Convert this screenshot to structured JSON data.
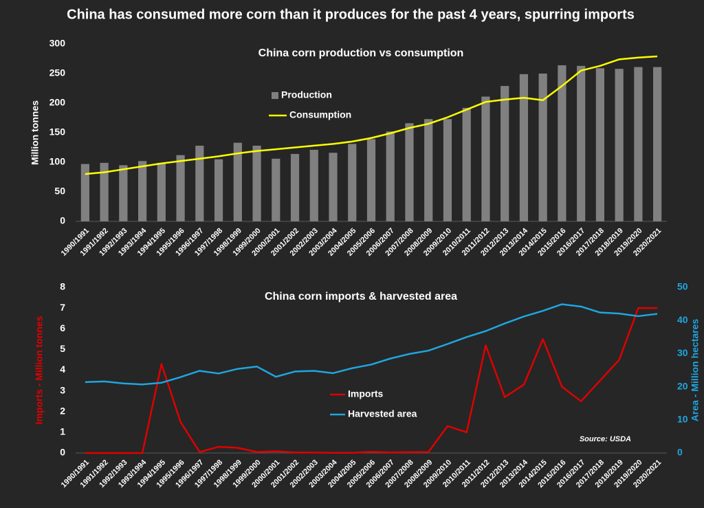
{
  "title": "China has consumed more corn than it produces for the past 4 years, spurring imports",
  "chart_data": [
    {
      "type": "combo",
      "title": "China corn production vs consumption",
      "ylabel": "Million tonnes",
      "categories": [
        "1990/1991",
        "1991/1992",
        "1992/1993",
        "1993/1994",
        "1994/1995",
        "1995/1996",
        "1996/1997",
        "1997/1998",
        "1998/1999",
        "1999/2000",
        "2000/2001",
        "2001/2002",
        "2002/2003",
        "2003/2004",
        "2004/2005",
        "2005/2006",
        "2006/2007",
        "2007/2008",
        "2008/2009",
        "2009/2010",
        "2010/2011",
        "2011/2012",
        "2012/2013",
        "2013/2014",
        "2014/2015",
        "2015/2016",
        "2016/2017",
        "2017/2018",
        "2018/2019",
        "2019/2020",
        "2020/2021"
      ],
      "series": [
        {
          "name": "Production",
          "type": "bar",
          "color": "#808080",
          "values": [
            97,
            99,
            95,
            102,
            99,
            112,
            128,
            105,
            133,
            128,
            106,
            114,
            121,
            116,
            131,
            139,
            152,
            166,
            173,
            173,
            192,
            211,
            229,
            249,
            250,
            264,
            263,
            259,
            258,
            261,
            261
          ]
        },
        {
          "name": "Consumption",
          "type": "line",
          "color": "#ffff00",
          "values": [
            80,
            83,
            88,
            93,
            98,
            102,
            106,
            110,
            115,
            119,
            122,
            125,
            128,
            131,
            135,
            141,
            149,
            158,
            165,
            176,
            189,
            202,
            206,
            209,
            205,
            229,
            255,
            263,
            274,
            277,
            279
          ]
        }
      ],
      "ylim": [
        0,
        300
      ],
      "yticks": [
        0,
        50,
        100,
        150,
        200,
        250,
        300
      ]
    },
    {
      "type": "line",
      "title": "China corn imports & harvested area",
      "ylabel": "Imports - Million tonnes",
      "y2label": "Area - Million hectares",
      "annotation": "Source: USDA",
      "categories": [
        "1990/1991",
        "1991/1992",
        "1992/1993",
        "1993/1994",
        "1994/1995",
        "1995/1996",
        "1996/1997",
        "1997/1998",
        "1998/1999",
        "1999/2000",
        "2000/2001",
        "2001/2002",
        "2002/2003",
        "2003/2004",
        "2004/2005",
        "2005/2006",
        "2006/2007",
        "2007/2008",
        "2008/2009",
        "2009/2010",
        "2010/2011",
        "2011/2012",
        "2012/2013",
        "2013/2014",
        "2014/2015",
        "2015/2016",
        "2016/2017",
        "2017/2018",
        "2018/2019",
        "2019/2020",
        "2020/2021"
      ],
      "series": [
        {
          "name": "Imports",
          "color": "#e00000",
          "values": [
            0,
            0,
            0,
            0,
            4.3,
            1.5,
            0.05,
            0.3,
            0.25,
            0.05,
            0.08,
            0.03,
            0.02,
            0.01,
            0.01,
            0.06,
            0.03,
            0.04,
            0.05,
            1.3,
            1.0,
            5.2,
            2.7,
            3.3,
            5.5,
            3.2,
            2.5,
            3.5,
            4.5,
            7.0,
            7.0
          ]
        },
        {
          "name": "Harvested area",
          "color": "#1fa6e0",
          "axis": "y2",
          "values": [
            21.4,
            21.6,
            21.0,
            20.7,
            21.2,
            22.9,
            24.8,
            24.0,
            25.4,
            26.1,
            23.0,
            24.6,
            24.8,
            24.1,
            25.6,
            26.7,
            28.5,
            29.9,
            30.9,
            32.9,
            35.0,
            36.8,
            39.1,
            41.2,
            42.9,
            44.9,
            44.2,
            42.4,
            42.1,
            41.3,
            42.0
          ]
        }
      ],
      "ylim": [
        0,
        8
      ],
      "yticks": [
        0,
        1,
        2,
        3,
        4,
        5,
        6,
        7,
        8
      ],
      "y2lim": [
        0,
        50
      ],
      "y2ticks": [
        0,
        10,
        20,
        30,
        40,
        50
      ]
    }
  ]
}
